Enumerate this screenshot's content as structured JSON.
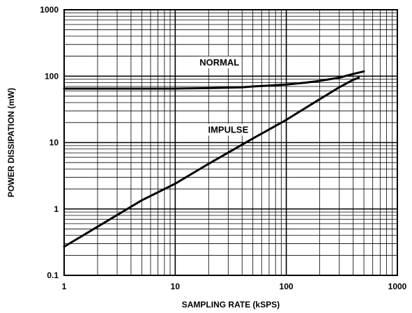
{
  "chart_data": {
    "type": "line",
    "xlabel": "SAMPLING RATE (kSPS)",
    "ylabel": "POWER DISSIPATION (mW)",
    "xscale": "log",
    "yscale": "log",
    "xlim": [
      1,
      1000
    ],
    "ylim": [
      0.1,
      1000
    ],
    "grid": true,
    "x_tick_labels": [
      "1",
      "10",
      "100",
      "1000"
    ],
    "y_tick_labels": [
      "0.1",
      "1",
      "10",
      "100",
      "1000"
    ],
    "series": [
      {
        "name": "NORMAL",
        "x": [
          1,
          5,
          10,
          20,
          30,
          40,
          50,
          70,
          100,
          150,
          200,
          300,
          400,
          500
        ],
        "y": [
          65,
          65,
          65,
          66,
          67,
          68,
          70,
          72,
          75,
          80,
          85,
          95,
          108,
          118
        ]
      },
      {
        "name": "IMPULSE",
        "x": [
          1,
          2,
          5,
          10,
          20,
          50,
          100,
          200,
          300,
          400,
          450
        ],
        "y": [
          0.27,
          0.54,
          1.35,
          2.4,
          4.8,
          11.5,
          22,
          45,
          68,
          88,
          95
        ]
      }
    ]
  }
}
